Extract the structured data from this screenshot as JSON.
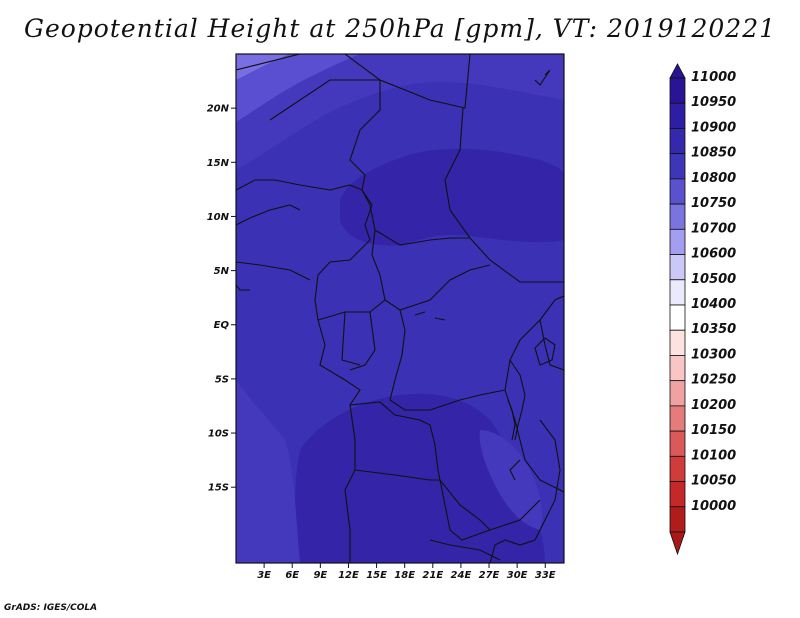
{
  "title": "Geopotential Height at 250hPa [gpm], VT: 2019120221",
  "credit": "GrADS: IGES/COLA",
  "map": {
    "lon_range": [
      0,
      35
    ],
    "lat_range": [
      -22,
      25
    ],
    "lat_ticks": [
      {
        "value": 20,
        "label": "20N"
      },
      {
        "value": 15,
        "label": "15N"
      },
      {
        "value": 10,
        "label": "10N"
      },
      {
        "value": 5,
        "label": "5N"
      },
      {
        "value": 0,
        "label": "EQ"
      },
      {
        "value": -5,
        "label": "5S"
      },
      {
        "value": -10,
        "label": "10S"
      },
      {
        "value": -15,
        "label": "15S"
      }
    ],
    "lon_ticks": [
      {
        "value": 3,
        "label": "3E"
      },
      {
        "value": 6,
        "label": "6E"
      },
      {
        "value": 9,
        "label": "9E"
      },
      {
        "value": 12,
        "label": "12E"
      },
      {
        "value": 15,
        "label": "15E"
      },
      {
        "value": 18,
        "label": "18E"
      },
      {
        "value": 21,
        "label": "21E"
      },
      {
        "value": 24,
        "label": "24E"
      },
      {
        "value": 27,
        "label": "27E"
      },
      {
        "value": 30,
        "label": "30E"
      },
      {
        "value": 33,
        "label": "33E"
      }
    ]
  },
  "colorbar": {
    "levels": [
      {
        "label": "11000",
        "color": "#2a1496"
      },
      {
        "label": "10950",
        "color": "#2d1ea3"
      },
      {
        "label": "10900",
        "color": "#3428ad"
      },
      {
        "label": "10850",
        "color": "#3d36b6"
      },
      {
        "label": "10800",
        "color": "#5a52cc"
      },
      {
        "label": "10750",
        "color": "#7b74df"
      },
      {
        "label": "10700",
        "color": "#a39ef0"
      },
      {
        "label": "10600",
        "color": "#cbc8f7"
      },
      {
        "label": "10500",
        "color": "#ebeafc"
      },
      {
        "label": "10400",
        "color": "#ffffff"
      },
      {
        "label": "10350",
        "color": "#fde2e2"
      },
      {
        "label": "10300",
        "color": "#f9c6c6"
      },
      {
        "label": "10250",
        "color": "#f0a1a1"
      },
      {
        "label": "10200",
        "color": "#e57b7b"
      },
      {
        "label": "10150",
        "color": "#da5a5a"
      },
      {
        "label": "10100",
        "color": "#d03c3c"
      },
      {
        "label": "10050",
        "color": "#c42828"
      },
      {
        "label": "10000",
        "color": "#b01c1c"
      }
    ],
    "top_arrow_color": "#2a1496",
    "bottom_arrow_color": "#a81818"
  },
  "field_colors": {
    "deep": "#3424a8",
    "mid": "#3b31b5",
    "light": "#4438bd",
    "pale": "#5a4fd0",
    "palest": "#7a6fe2",
    "border": "#111111"
  }
}
